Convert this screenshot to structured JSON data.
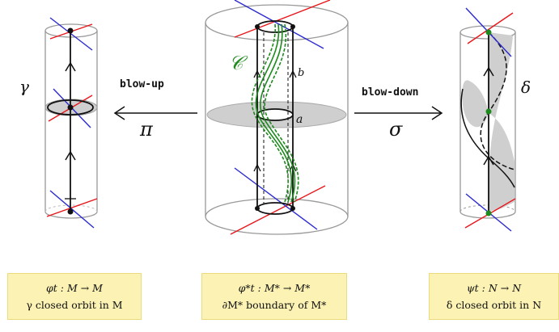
{
  "labels": {
    "gamma": "γ",
    "delta": "δ",
    "C": "𝒞",
    "a": "a",
    "b": "b",
    "blow_up": "blow-up",
    "blow_down": "blow-down",
    "pi": "π",
    "sigma": "σ"
  },
  "captions": {
    "left": {
      "line1": "φt : M → M",
      "line2": "γ closed orbit in M"
    },
    "middle": {
      "line1": "φ*t : M* → M*",
      "line2": "∂M* boundary of M*"
    },
    "right": {
      "line1": "ψt : N → N",
      "line2": "δ closed orbit in N"
    }
  },
  "colors": {
    "red": "#e8161a",
    "blue": "#2a2ad0",
    "green": "#1d8a1d",
    "gray_fill": "#cfcfcf",
    "caption_bg": "#fbf2b4",
    "caption_border": "#eadc7c"
  }
}
